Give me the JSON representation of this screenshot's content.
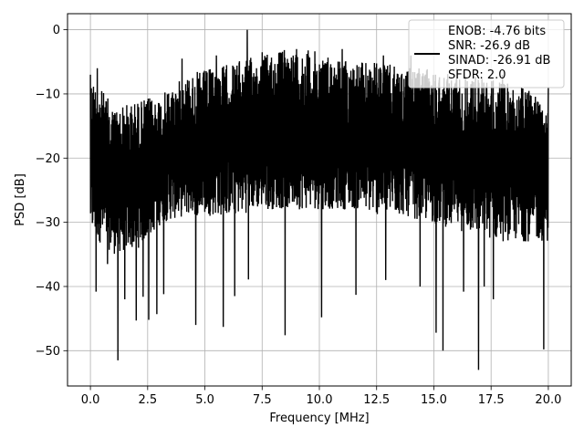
{
  "chart_data": {
    "type": "line",
    "title": "",
    "xlabel": "Frequency [MHz]",
    "ylabel": "PSD [dB]",
    "xlim": [
      -1.0,
      21.0
    ],
    "ylim": [
      -55.5,
      2.5
    ],
    "xticks": [
      0.0,
      2.5,
      5.0,
      7.5,
      10.0,
      12.5,
      15.0,
      17.5,
      20.0
    ],
    "xtick_labels": [
      "0.0",
      "2.5",
      "5.0",
      "7.5",
      "10.0",
      "12.5",
      "15.0",
      "17.5",
      "20.0"
    ],
    "yticks": [
      0,
      -10,
      -20,
      -30,
      -40,
      -50
    ],
    "ytick_labels": [
      "0",
      "−10",
      "−20",
      "−30",
      "−40",
      "−50"
    ],
    "grid": true,
    "legend_position": "top-right",
    "series": [
      {
        "name": "ENOB: -4.76 bits\nSNR: -26.9 dB\nSINAD: -26.91 dB\nSFDR: 2.0",
        "color": "#000000",
        "x_range": [
          0.0,
          20.0
        ],
        "envelope_upper": [
          -7,
          -12,
          -11,
          -10,
          -7,
          -6,
          -5,
          -4,
          -3,
          -3,
          -4,
          -5,
          -5,
          -6,
          -6,
          -7,
          -7,
          -8,
          -9,
          -10
        ],
        "envelope_lower": [
          -32,
          -35,
          -34,
          -30,
          -29,
          -29,
          -29,
          -28,
          -28,
          -28,
          -28,
          -28,
          -29,
          -29,
          -30,
          -31,
          -32,
          -33,
          -33,
          -33
        ],
        "peaks": [
          [
            0.0,
            -7
          ],
          [
            0.3,
            -6
          ],
          [
            1.0,
            -14
          ],
          [
            2.4,
            -12
          ],
          [
            4.0,
            -4.5
          ],
          [
            5.5,
            -4
          ],
          [
            6.85,
            0
          ],
          [
            7.5,
            -3.5
          ],
          [
            9.0,
            -3
          ],
          [
            11.0,
            -3
          ],
          [
            12.8,
            -4
          ],
          [
            14.0,
            -4
          ],
          [
            16.0,
            -6
          ],
          [
            18.0,
            -7
          ],
          [
            20.0,
            -9
          ]
        ],
        "spikes": [
          [
            0.25,
            -40.8
          ],
          [
            0.75,
            -36.5
          ],
          [
            1.2,
            -51.5
          ],
          [
            1.5,
            -42
          ],
          [
            2.0,
            -45.3
          ],
          [
            2.3,
            -41.6
          ],
          [
            2.55,
            -45.2
          ],
          [
            2.9,
            -44.3
          ],
          [
            3.2,
            -41.2
          ],
          [
            4.6,
            -46
          ],
          [
            5.8,
            -46.3
          ],
          [
            6.3,
            -41.5
          ],
          [
            6.9,
            -38.9
          ],
          [
            8.5,
            -47.6
          ],
          [
            10.1,
            -44.8
          ],
          [
            11.6,
            -41.3
          ],
          [
            12.9,
            -39
          ],
          [
            14.4,
            -40
          ],
          [
            15.1,
            -47.2
          ],
          [
            15.4,
            -50
          ],
          [
            16.3,
            -40.8
          ],
          [
            16.95,
            -53
          ],
          [
            17.2,
            -40
          ],
          [
            17.6,
            -42
          ],
          [
            19.8,
            -49.8
          ],
          [
            20.0,
            -38.3
          ]
        ]
      }
    ]
  }
}
